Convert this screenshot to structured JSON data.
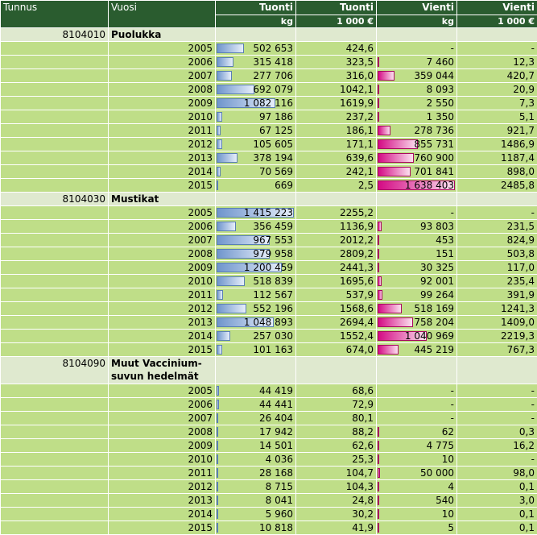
{
  "headers": {
    "col1": "Tunnus",
    "col2": "Vuosi",
    "col3": {
      "top": "Tuonti",
      "sub": "kg"
    },
    "col4": {
      "top": "Tuonti",
      "sub": "1 000 €"
    },
    "col5": {
      "top": "Vienti",
      "sub": "kg"
    },
    "col6": {
      "top": "Vienti",
      "sub": "1 000 €"
    }
  },
  "colors": {
    "header": "#2a5c2f",
    "group_row": "#dfe9cf",
    "data_row": "#bfde88",
    "import_bar": "#6f95cc",
    "export_bar": "#d40b84"
  },
  "groups": [
    {
      "code": "8104010",
      "name": "Puolukka",
      "rows": [
        {
          "year": "2005",
          "imp_kg": "502 653",
          "imp_kg_v": 502653,
          "imp_eur": "424,6",
          "exp_kg": "-",
          "exp_kg_v": 0,
          "exp_eur": "-"
        },
        {
          "year": "2006",
          "imp_kg": "315 418",
          "imp_kg_v": 315418,
          "imp_eur": "323,5",
          "exp_kg": "7 460",
          "exp_kg_v": 7460,
          "exp_eur": "12,3"
        },
        {
          "year": "2007",
          "imp_kg": "277 706",
          "imp_kg_v": 277706,
          "imp_eur": "316,0",
          "exp_kg": "359 044",
          "exp_kg_v": 359044,
          "exp_eur": "420,7"
        },
        {
          "year": "2008",
          "imp_kg": "692 079",
          "imp_kg_v": 692079,
          "imp_eur": "1042,1",
          "exp_kg": "8 093",
          "exp_kg_v": 8093,
          "exp_eur": "20,9"
        },
        {
          "year": "2009",
          "imp_kg": "1 082 116",
          "imp_kg_v": 1082116,
          "imp_eur": "1619,9",
          "exp_kg": "2 550",
          "exp_kg_v": 2550,
          "exp_eur": "7,3"
        },
        {
          "year": "2010",
          "imp_kg": "97 186",
          "imp_kg_v": 97186,
          "imp_eur": "237,2",
          "exp_kg": "1 350",
          "exp_kg_v": 1350,
          "exp_eur": "5,1"
        },
        {
          "year": "2011",
          "imp_kg": "67 125",
          "imp_kg_v": 67125,
          "imp_eur": "186,1",
          "exp_kg": "278 736",
          "exp_kg_v": 278736,
          "exp_eur": "921,7"
        },
        {
          "year": "2012",
          "imp_kg": "105 605",
          "imp_kg_v": 105605,
          "imp_eur": "171,1",
          "exp_kg": "855 731",
          "exp_kg_v": 855731,
          "exp_eur": "1486,9"
        },
        {
          "year": "2013",
          "imp_kg": "378 194",
          "imp_kg_v": 378194,
          "imp_eur": "639,6",
          "exp_kg": "760 900",
          "exp_kg_v": 760900,
          "exp_eur": "1187,4"
        },
        {
          "year": "2014",
          "imp_kg": "70 569",
          "imp_kg_v": 70569,
          "imp_eur": "242,1",
          "exp_kg": "701 841",
          "exp_kg_v": 701841,
          "exp_eur": "898,0"
        },
        {
          "year": "2015",
          "imp_kg": "669",
          "imp_kg_v": 669,
          "imp_eur": "2,5",
          "exp_kg": "1 638 403",
          "exp_kg_v": 1638403,
          "exp_eur": "2485,8"
        }
      ]
    },
    {
      "code": "8104030",
      "name": "Mustikat",
      "rows": [
        {
          "year": "2005",
          "imp_kg": "1 415 223",
          "imp_kg_v": 1415223,
          "imp_eur": "2255,2",
          "exp_kg": "-",
          "exp_kg_v": 0,
          "exp_eur": "-"
        },
        {
          "year": "2006",
          "imp_kg": "356 459",
          "imp_kg_v": 356459,
          "imp_eur": "1136,9",
          "exp_kg": "93 803",
          "exp_kg_v": 93803,
          "exp_eur": "231,5"
        },
        {
          "year": "2007",
          "imp_kg": "967 553",
          "imp_kg_v": 967553,
          "imp_eur": "2012,2",
          "exp_kg": "453",
          "exp_kg_v": 453,
          "exp_eur": "824,9"
        },
        {
          "year": "2008",
          "imp_kg": "979 958",
          "imp_kg_v": 979958,
          "imp_eur": "2809,2",
          "exp_kg": "151",
          "exp_kg_v": 151,
          "exp_eur": "503,8"
        },
        {
          "year": "2009",
          "imp_kg": "1 200 459",
          "imp_kg_v": 1200459,
          "imp_eur": "2441,3",
          "exp_kg": "30 325",
          "exp_kg_v": 30325,
          "exp_eur": "117,0"
        },
        {
          "year": "2010",
          "imp_kg": "518 839",
          "imp_kg_v": 518839,
          "imp_eur": "1695,6",
          "exp_kg": "92 001",
          "exp_kg_v": 92001,
          "exp_eur": "235,4"
        },
        {
          "year": "2011",
          "imp_kg": "112 567",
          "imp_kg_v": 112567,
          "imp_eur": "537,9",
          "exp_kg": "99 264",
          "exp_kg_v": 99264,
          "exp_eur": "391,9"
        },
        {
          "year": "2012",
          "imp_kg": "552 196",
          "imp_kg_v": 552196,
          "imp_eur": "1568,6",
          "exp_kg": "518 169",
          "exp_kg_v": 518169,
          "exp_eur": "1241,3"
        },
        {
          "year": "2013",
          "imp_kg": "1 048 893",
          "imp_kg_v": 1048893,
          "imp_eur": "2694,4",
          "exp_kg": "758 204",
          "exp_kg_v": 758204,
          "exp_eur": "1409,0"
        },
        {
          "year": "2014",
          "imp_kg": "257 030",
          "imp_kg_v": 257030,
          "imp_eur": "1552,4",
          "exp_kg": "1 040 969",
          "exp_kg_v": 1040969,
          "exp_eur": "2219,3"
        },
        {
          "year": "2015",
          "imp_kg": "101 163",
          "imp_kg_v": 101163,
          "imp_eur": "674,0",
          "exp_kg": "445 219",
          "exp_kg_v": 445219,
          "exp_eur": "767,3"
        }
      ]
    },
    {
      "code": "8104090",
      "name": "Muut Vaccinium-suvun hedelmät",
      "tall": true,
      "rows": [
        {
          "year": "2005",
          "imp_kg": "44 419",
          "imp_kg_v": 44419,
          "imp_eur": "68,6",
          "exp_kg": "-",
          "exp_kg_v": 0,
          "exp_eur": "-"
        },
        {
          "year": "2006",
          "imp_kg": "44 441",
          "imp_kg_v": 44441,
          "imp_eur": "72,9",
          "exp_kg": "-",
          "exp_kg_v": 0,
          "exp_eur": "-"
        },
        {
          "year": "2007",
          "imp_kg": "26 404",
          "imp_kg_v": 26404,
          "imp_eur": "80,1",
          "exp_kg": "-",
          "exp_kg_v": 0,
          "exp_eur": "-"
        },
        {
          "year": "2008",
          "imp_kg": "17 942",
          "imp_kg_v": 17942,
          "imp_eur": "88,2",
          "exp_kg": "62",
          "exp_kg_v": 62,
          "exp_eur": "0,3"
        },
        {
          "year": "2009",
          "imp_kg": "14 501",
          "imp_kg_v": 14501,
          "imp_eur": "62,6",
          "exp_kg": "4 775",
          "exp_kg_v": 4775,
          "exp_eur": "16,2"
        },
        {
          "year": "2010",
          "imp_kg": "4 036",
          "imp_kg_v": 4036,
          "imp_eur": "25,3",
          "exp_kg": "10",
          "exp_kg_v": 10,
          "exp_eur": "-"
        },
        {
          "year": "2011",
          "imp_kg": "28 168",
          "imp_kg_v": 28168,
          "imp_eur": "104,7",
          "exp_kg": "50 000",
          "exp_kg_v": 50000,
          "exp_eur": "98,0"
        },
        {
          "year": "2012",
          "imp_kg": "8 715",
          "imp_kg_v": 8715,
          "imp_eur": "104,3",
          "exp_kg": "4",
          "exp_kg_v": 4,
          "exp_eur": "0,1"
        },
        {
          "year": "2013",
          "imp_kg": "8 041",
          "imp_kg_v": 8041,
          "imp_eur": "24,8",
          "exp_kg": "540",
          "exp_kg_v": 540,
          "exp_eur": "3,0"
        },
        {
          "year": "2014",
          "imp_kg": "5 960",
          "imp_kg_v": 5960,
          "imp_eur": "30,2",
          "exp_kg": "10",
          "exp_kg_v": 10,
          "exp_eur": "0,1"
        },
        {
          "year": "2015",
          "imp_kg": "10 818",
          "imp_kg_v": 10818,
          "imp_eur": "41,9",
          "exp_kg": "5",
          "exp_kg_v": 5,
          "exp_eur": "0,1"
        }
      ]
    }
  ]
}
